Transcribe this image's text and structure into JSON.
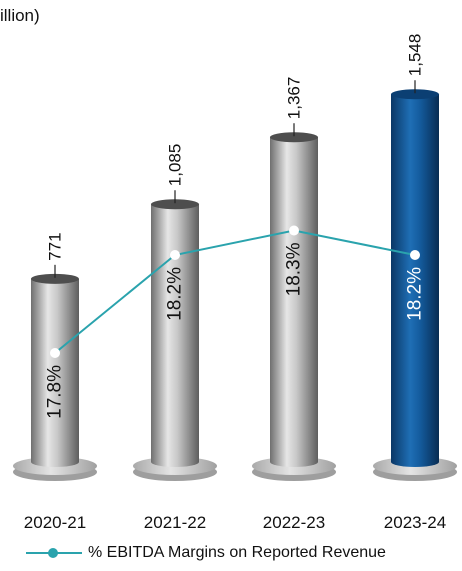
{
  "chart_data": {
    "type": "bar",
    "title": "illion)",
    "categories": [
      "2020-21",
      "2021-22",
      "2022-23",
      "2023-24"
    ],
    "series": [
      {
        "name": "",
        "values": [
          771,
          1085,
          1367,
          1548
        ],
        "labels": [
          "771",
          "1,085",
          "1,367",
          "1,548"
        ]
      },
      {
        "name": "% EBITDA Margins on Reported Revenue",
        "type": "line",
        "values": [
          17.8,
          18.2,
          18.3,
          18.2
        ],
        "labels": [
          "17.8%",
          "18.2%",
          "18.3%",
          "18.2%"
        ]
      }
    ],
    "ylim": [
      0,
      1650
    ],
    "highlight_index": 3,
    "colors": {
      "bar": "#9a9a9a",
      "highlight": "#0d4a86",
      "line": "#2aa3ad",
      "base": "#bdbdbd"
    }
  }
}
